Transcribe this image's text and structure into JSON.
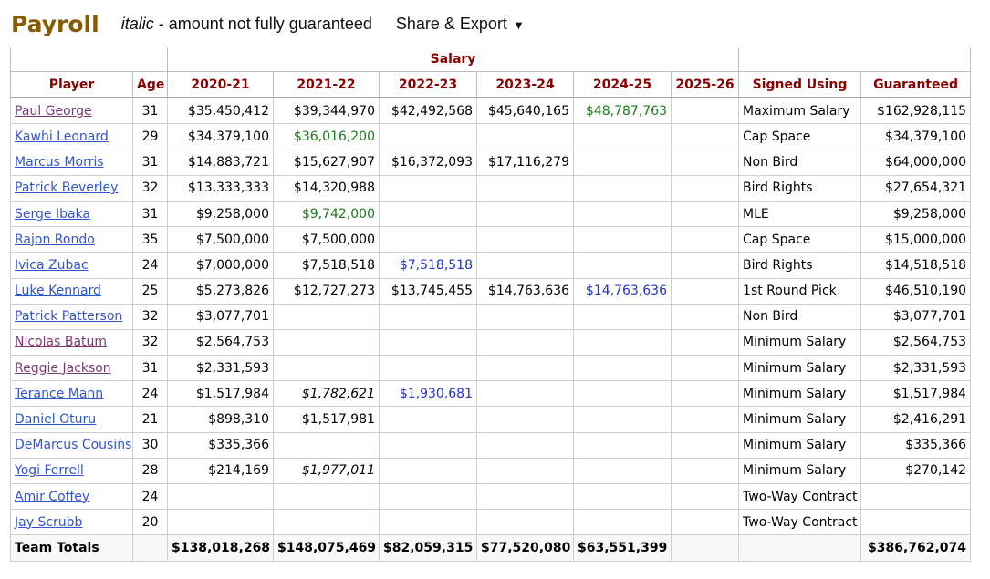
{
  "title": "Payroll",
  "legend": {
    "italic": "italic",
    "rest": " - amount not fully guaranteed"
  },
  "share": {
    "label": "Share & Export",
    "caret": "▼"
  },
  "table": {
    "group_label": "Salary",
    "headers": [
      "Player",
      "Age",
      "2020-21",
      "2021-22",
      "2022-23",
      "2023-24",
      "2024-25",
      "2025-26",
      "Signed Using",
      "Guaranteed"
    ],
    "rows": [
      {
        "player": "Paul George",
        "visited": true,
        "age": "31",
        "salaries": [
          {
            "v": "$35,450,412"
          },
          {
            "v": "$39,344,970"
          },
          {
            "v": "$42,492,568"
          },
          {
            "v": "$45,640,165"
          },
          {
            "v": "$48,787,763",
            "t": "opt"
          },
          {
            "v": ""
          }
        ],
        "signed": "Maximum Salary",
        "guaranteed": "$162,928,115"
      },
      {
        "player": "Kawhi Leonard",
        "visited": false,
        "age": "29",
        "salaries": [
          {
            "v": "$34,379,100"
          },
          {
            "v": "$36,016,200",
            "t": "opt"
          },
          {
            "v": ""
          },
          {
            "v": ""
          },
          {
            "v": ""
          },
          {
            "v": ""
          }
        ],
        "signed": "Cap Space",
        "guaranteed": "$34,379,100"
      },
      {
        "player": "Marcus Morris",
        "visited": false,
        "age": "31",
        "salaries": [
          {
            "v": "$14,883,721"
          },
          {
            "v": "$15,627,907"
          },
          {
            "v": "$16,372,093"
          },
          {
            "v": "$17,116,279"
          },
          {
            "v": ""
          },
          {
            "v": ""
          }
        ],
        "signed": "Non Bird",
        "guaranteed": "$64,000,000"
      },
      {
        "player": "Patrick Beverley",
        "visited": false,
        "age": "32",
        "salaries": [
          {
            "v": "$13,333,333"
          },
          {
            "v": "$14,320,988"
          },
          {
            "v": ""
          },
          {
            "v": ""
          },
          {
            "v": ""
          },
          {
            "v": ""
          }
        ],
        "signed": "Bird Rights",
        "guaranteed": "$27,654,321"
      },
      {
        "player": "Serge Ibaka",
        "visited": false,
        "age": "31",
        "salaries": [
          {
            "v": "$9,258,000"
          },
          {
            "v": "$9,742,000",
            "t": "opt"
          },
          {
            "v": ""
          },
          {
            "v": ""
          },
          {
            "v": ""
          },
          {
            "v": ""
          }
        ],
        "signed": "MLE",
        "guaranteed": "$9,258,000"
      },
      {
        "player": "Rajon Rondo",
        "visited": false,
        "age": "35",
        "salaries": [
          {
            "v": "$7,500,000"
          },
          {
            "v": "$7,500,000"
          },
          {
            "v": ""
          },
          {
            "v": ""
          },
          {
            "v": ""
          },
          {
            "v": ""
          }
        ],
        "signed": "Cap Space",
        "guaranteed": "$15,000,000"
      },
      {
        "player": "Ivica Zubac",
        "visited": false,
        "age": "24",
        "salaries": [
          {
            "v": "$7,000,000"
          },
          {
            "v": "$7,518,518"
          },
          {
            "v": "$7,518,518",
            "t": "team"
          },
          {
            "v": ""
          },
          {
            "v": ""
          },
          {
            "v": ""
          }
        ],
        "signed": "Bird Rights",
        "guaranteed": "$14,518,518"
      },
      {
        "player": "Luke Kennard",
        "visited": false,
        "age": "25",
        "salaries": [
          {
            "v": "$5,273,826"
          },
          {
            "v": "$12,727,273"
          },
          {
            "v": "$13,745,455"
          },
          {
            "v": "$14,763,636"
          },
          {
            "v": "$14,763,636",
            "t": "team"
          },
          {
            "v": ""
          }
        ],
        "signed": "1st Round Pick",
        "guaranteed": "$46,510,190"
      },
      {
        "player": "Patrick Patterson",
        "visited": false,
        "age": "32",
        "salaries": [
          {
            "v": "$3,077,701"
          },
          {
            "v": ""
          },
          {
            "v": ""
          },
          {
            "v": ""
          },
          {
            "v": ""
          },
          {
            "v": ""
          }
        ],
        "signed": "Non Bird",
        "guaranteed": "$3,077,701"
      },
      {
        "player": "Nicolas Batum",
        "visited": true,
        "age": "32",
        "salaries": [
          {
            "v": "$2,564,753"
          },
          {
            "v": ""
          },
          {
            "v": ""
          },
          {
            "v": ""
          },
          {
            "v": ""
          },
          {
            "v": ""
          }
        ],
        "signed": "Minimum Salary",
        "guaranteed": "$2,564,753"
      },
      {
        "player": "Reggie Jackson",
        "visited": true,
        "age": "31",
        "salaries": [
          {
            "v": "$2,331,593"
          },
          {
            "v": ""
          },
          {
            "v": ""
          },
          {
            "v": ""
          },
          {
            "v": ""
          },
          {
            "v": ""
          }
        ],
        "signed": "Minimum Salary",
        "guaranteed": "$2,331,593"
      },
      {
        "player": "Terance Mann",
        "visited": false,
        "age": "24",
        "salaries": [
          {
            "v": "$1,517,984"
          },
          {
            "v": "$1,782,621",
            "t": "ng"
          },
          {
            "v": "$1,930,681",
            "t": "team"
          },
          {
            "v": ""
          },
          {
            "v": ""
          },
          {
            "v": ""
          }
        ],
        "signed": "Minimum Salary",
        "guaranteed": "$1,517,984"
      },
      {
        "player": "Daniel Oturu",
        "visited": false,
        "age": "21",
        "salaries": [
          {
            "v": "$898,310"
          },
          {
            "v": "$1,517,981"
          },
          {
            "v": ""
          },
          {
            "v": ""
          },
          {
            "v": ""
          },
          {
            "v": ""
          }
        ],
        "signed": "Minimum Salary",
        "guaranteed": "$2,416,291"
      },
      {
        "player": "DeMarcus Cousins",
        "visited": false,
        "age": "30",
        "salaries": [
          {
            "v": "$335,366"
          },
          {
            "v": ""
          },
          {
            "v": ""
          },
          {
            "v": ""
          },
          {
            "v": ""
          },
          {
            "v": ""
          }
        ],
        "signed": "Minimum Salary",
        "guaranteed": "$335,366"
      },
      {
        "player": "Yogi Ferrell",
        "visited": false,
        "age": "28",
        "salaries": [
          {
            "v": "$214,169"
          },
          {
            "v": "$1,977,011",
            "t": "ng"
          },
          {
            "v": ""
          },
          {
            "v": ""
          },
          {
            "v": ""
          },
          {
            "v": ""
          }
        ],
        "signed": "Minimum Salary",
        "guaranteed": "$270,142"
      },
      {
        "player": "Amir Coffey",
        "visited": false,
        "age": "24",
        "salaries": [
          {
            "v": ""
          },
          {
            "v": ""
          },
          {
            "v": ""
          },
          {
            "v": ""
          },
          {
            "v": ""
          },
          {
            "v": ""
          }
        ],
        "signed": "Two-Way Contract",
        "guaranteed": ""
      },
      {
        "player": "Jay Scrubb",
        "visited": false,
        "age": "20",
        "salaries": [
          {
            "v": ""
          },
          {
            "v": ""
          },
          {
            "v": ""
          },
          {
            "v": ""
          },
          {
            "v": ""
          },
          {
            "v": ""
          }
        ],
        "signed": "Two-Way Contract",
        "guaranteed": ""
      }
    ],
    "totals": {
      "label": "Team Totals",
      "age": "",
      "salaries": [
        "$138,018,268",
        "$148,075,469",
        "$82,059,315",
        "$77,520,080",
        "$63,551,399",
        ""
      ],
      "signed": "",
      "guaranteed": "$386,762,074"
    }
  },
  "colors": {
    "title": "#8a5a00",
    "header": "#8b0000",
    "link": "#3355cc",
    "visited": "#7a3c78",
    "player_option": "#1a7a1a",
    "team_option": "#2233cc"
  }
}
